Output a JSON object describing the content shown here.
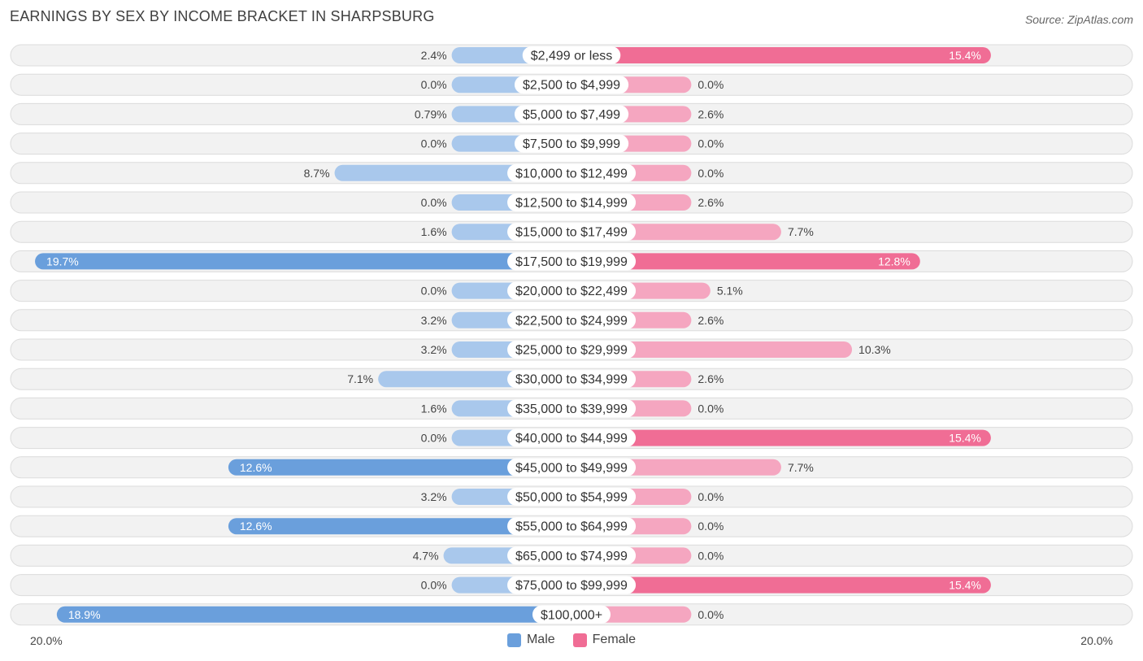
{
  "title": "EARNINGS BY SEX BY INCOME BRACKET IN SHARPSBURG",
  "source": "Source: ZipAtlas.com",
  "colors": {
    "male_strong": "#6a9fdc",
    "male_light": "#a9c8ec",
    "female_strong": "#f06d95",
    "female_light": "#f5a6c0"
  },
  "chart_data": {
    "type": "bar",
    "orientation": "diverging-horizontal",
    "title": "EARNINGS BY SEX BY INCOME BRACKET IN SHARPSBURG",
    "xlim": [
      -20,
      20
    ],
    "axis_min_label": "20.0%",
    "axis_max_label": "20.0%",
    "legend": [
      "Male",
      "Female"
    ],
    "categories": [
      "$2,499 or less",
      "$2,500 to $4,999",
      "$5,000 to $7,499",
      "$7,500 to $9,999",
      "$10,000 to $12,499",
      "$12,500 to $14,999",
      "$15,000 to $17,499",
      "$17,500 to $19,999",
      "$20,000 to $22,499",
      "$22,500 to $24,999",
      "$25,000 to $29,999",
      "$30,000 to $34,999",
      "$35,000 to $39,999",
      "$40,000 to $44,999",
      "$45,000 to $49,999",
      "$50,000 to $54,999",
      "$55,000 to $64,999",
      "$65,000 to $74,999",
      "$75,000 to $99,999",
      "$100,000+"
    ],
    "series": [
      {
        "name": "Male",
        "values": [
          2.4,
          0.0,
          0.79,
          0.0,
          8.7,
          0.0,
          1.6,
          19.7,
          0.0,
          3.2,
          3.2,
          7.1,
          1.6,
          0.0,
          12.6,
          3.2,
          12.6,
          4.7,
          0.0,
          18.9
        ],
        "labels": [
          "2.4%",
          "0.0%",
          "0.79%",
          "0.0%",
          "8.7%",
          "0.0%",
          "1.6%",
          "19.7%",
          "0.0%",
          "3.2%",
          "3.2%",
          "7.1%",
          "1.6%",
          "0.0%",
          "12.6%",
          "3.2%",
          "12.6%",
          "4.7%",
          "0.0%",
          "18.9%"
        ]
      },
      {
        "name": "Female",
        "values": [
          15.4,
          0.0,
          2.6,
          0.0,
          0.0,
          2.6,
          7.7,
          12.8,
          5.1,
          2.6,
          10.3,
          2.6,
          0.0,
          15.4,
          7.7,
          0.0,
          0.0,
          0.0,
          15.4,
          0.0
        ],
        "labels": [
          "15.4%",
          "0.0%",
          "2.6%",
          "0.0%",
          "0.0%",
          "2.6%",
          "7.7%",
          "12.8%",
          "5.1%",
          "2.6%",
          "10.3%",
          "2.6%",
          "0.0%",
          "15.4%",
          "7.7%",
          "0.0%",
          "0.0%",
          "0.0%",
          "15.4%",
          "0.0%"
        ]
      }
    ]
  }
}
